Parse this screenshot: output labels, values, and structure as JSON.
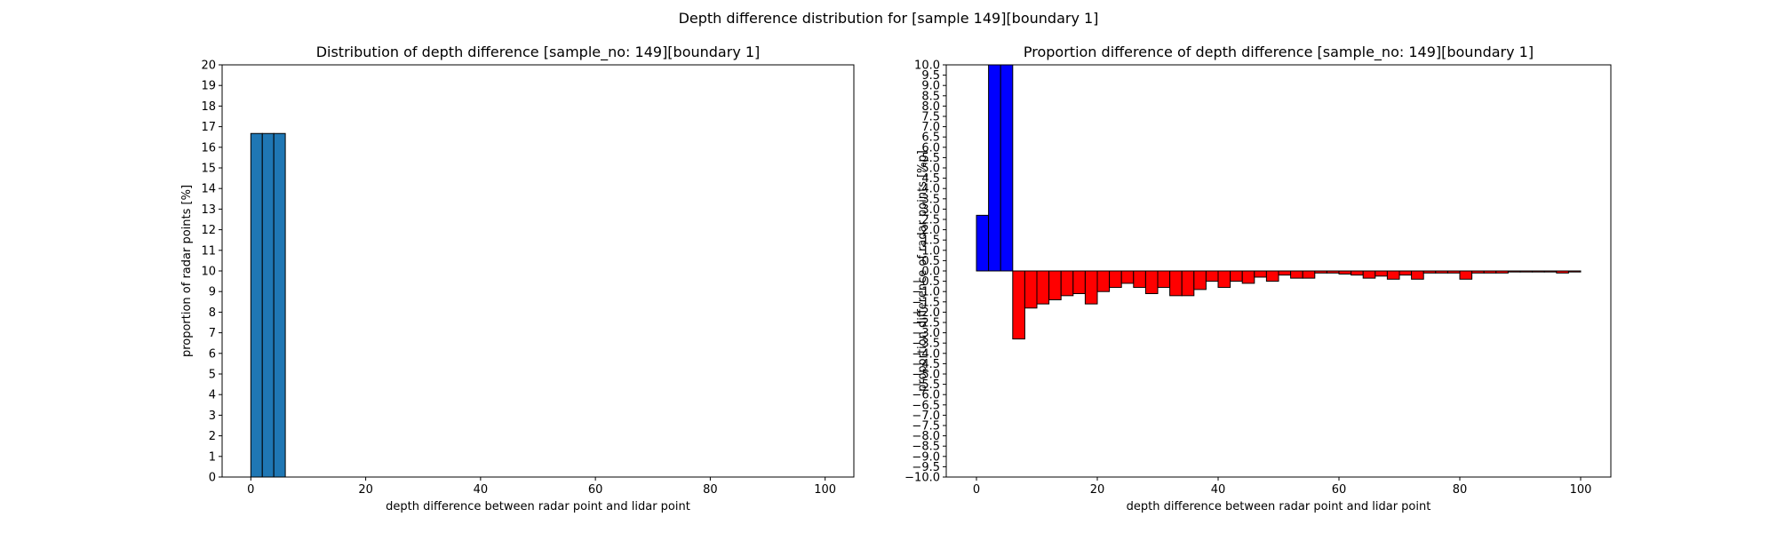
{
  "figure": {
    "suptitle": "Depth difference distribution for [sample 149][boundary 1]"
  },
  "chart_data": [
    {
      "type": "bar",
      "title": "Distribution of depth difference [sample_no: 149][boundary 1]",
      "xlabel": "depth difference between radar point and lidar point",
      "ylabel": "proportion of radar points [%]",
      "xlim": [
        -5,
        105
      ],
      "ylim": [
        0,
        20
      ],
      "xticks": [
        0,
        20,
        40,
        60,
        80,
        100
      ],
      "yticks": [
        0,
        1,
        2,
        3,
        4,
        5,
        6,
        7,
        8,
        9,
        10,
        11,
        12,
        13,
        14,
        15,
        16,
        17,
        18,
        19,
        20
      ],
      "bin_width": 2,
      "colors": {
        "bar": "#1f77b4",
        "edge": "#000000"
      },
      "bins": [
        {
          "x": 0,
          "value": 16.67
        },
        {
          "x": 2,
          "value": 16.67
        },
        {
          "x": 4,
          "value": 16.67
        }
      ]
    },
    {
      "type": "bar",
      "title": "Proportion difference of depth difference [sample_no: 149][boundary 1]",
      "xlabel": "depth difference between radar point and lidar point",
      "ylabel": "proportion difference of radar points [%p]",
      "xlim": [
        -5,
        105
      ],
      "ylim": [
        -10,
        10
      ],
      "xticks": [
        0,
        20,
        40,
        60,
        80,
        100
      ],
      "ytick_step": 0.5,
      "bin_width": 2,
      "colors": {
        "positive": "#0000ff",
        "negative": "#ff0000",
        "edge": "#000000"
      },
      "bins": [
        {
          "x": 0,
          "value": 2.7
        },
        {
          "x": 2,
          "value": 10.0
        },
        {
          "x": 4,
          "value": 10.0
        },
        {
          "x": 6,
          "value": -3.3
        },
        {
          "x": 8,
          "value": -1.8
        },
        {
          "x": 10,
          "value": -1.6
        },
        {
          "x": 12,
          "value": -1.4
        },
        {
          "x": 14,
          "value": -1.2
        },
        {
          "x": 16,
          "value": -1.1
        },
        {
          "x": 18,
          "value": -1.6
        },
        {
          "x": 20,
          "value": -1.0
        },
        {
          "x": 22,
          "value": -0.8
        },
        {
          "x": 24,
          "value": -0.6
        },
        {
          "x": 26,
          "value": -0.8
        },
        {
          "x": 28,
          "value": -1.1
        },
        {
          "x": 30,
          "value": -0.8
        },
        {
          "x": 32,
          "value": -1.2
        },
        {
          "x": 34,
          "value": -1.2
        },
        {
          "x": 36,
          "value": -0.9
        },
        {
          "x": 38,
          "value": -0.5
        },
        {
          "x": 40,
          "value": -0.8
        },
        {
          "x": 42,
          "value": -0.5
        },
        {
          "x": 44,
          "value": -0.6
        },
        {
          "x": 46,
          "value": -0.3
        },
        {
          "x": 48,
          "value": -0.5
        },
        {
          "x": 50,
          "value": -0.2
        },
        {
          "x": 52,
          "value": -0.35
        },
        {
          "x": 54,
          "value": -0.35
        },
        {
          "x": 56,
          "value": -0.1
        },
        {
          "x": 58,
          "value": -0.1
        },
        {
          "x": 60,
          "value": -0.15
        },
        {
          "x": 62,
          "value": -0.2
        },
        {
          "x": 64,
          "value": -0.35
        },
        {
          "x": 66,
          "value": -0.25
        },
        {
          "x": 68,
          "value": -0.4
        },
        {
          "x": 70,
          "value": -0.2
        },
        {
          "x": 72,
          "value": -0.4
        },
        {
          "x": 74,
          "value": -0.1
        },
        {
          "x": 76,
          "value": -0.1
        },
        {
          "x": 78,
          "value": -0.1
        },
        {
          "x": 80,
          "value": -0.4
        },
        {
          "x": 82,
          "value": -0.1
        },
        {
          "x": 84,
          "value": -0.1
        },
        {
          "x": 86,
          "value": -0.1
        },
        {
          "x": 88,
          "value": -0.05
        },
        {
          "x": 90,
          "value": -0.05
        },
        {
          "x": 92,
          "value": -0.05
        },
        {
          "x": 94,
          "value": -0.05
        },
        {
          "x": 96,
          "value": -0.1
        },
        {
          "x": 98,
          "value": -0.05
        }
      ]
    }
  ]
}
